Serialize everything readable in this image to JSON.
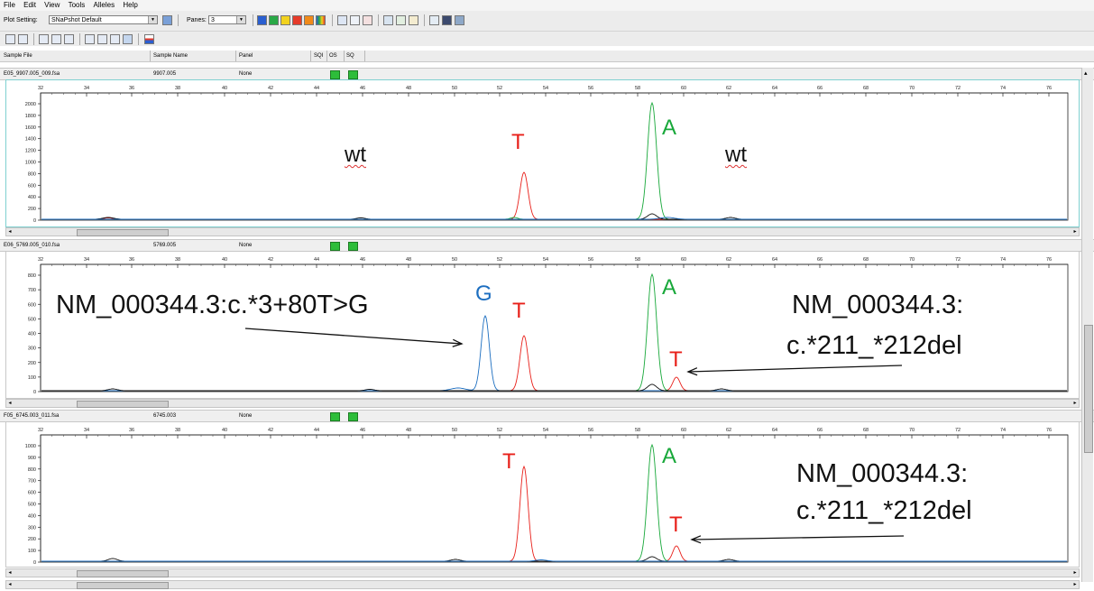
{
  "menu": [
    "File",
    "Edit",
    "View",
    "Tools",
    "Alleles",
    "Help"
  ],
  "toolbar": {
    "plot_setting_label": "Plot Setting:",
    "plot_setting_value": "SNaPshot Default",
    "panes_label": "Panes:",
    "panes_value": "3"
  },
  "columns": [
    "Sample File",
    "Sample Name",
    "Panel",
    "SQI",
    "OS",
    "SQ"
  ],
  "panels": [
    {
      "sample_file": "E05_9907.005_009.fsa",
      "sample_name": "9907.005",
      "panel": "None",
      "y_ticks": [
        "2000",
        "1800",
        "1600",
        "1400",
        "1200",
        "1000",
        "800",
        "600",
        "400",
        "200",
        "0"
      ],
      "peaks": [
        "T",
        "A"
      ],
      "annotations": [
        "wt",
        "wt"
      ]
    },
    {
      "sample_file": "E06_5769.005_010.fsa",
      "sample_name": "5769.005",
      "panel": "None",
      "y_ticks": [
        "800",
        "700",
        "600",
        "500",
        "400",
        "300",
        "200",
        "100",
        "0"
      ],
      "peaks": [
        "G",
        "T",
        "A",
        "T"
      ],
      "annotations": [
        "NM_000344.3:c.*3+80T>G",
        "NM_000344.3:",
        "c.*211_*212del"
      ]
    },
    {
      "sample_file": "F05_6745.003_011.fsa",
      "sample_name": "6745.003",
      "panel": "None",
      "y_ticks": [
        "1000",
        "900",
        "800",
        "700",
        "600",
        "500",
        "400",
        "300",
        "200",
        "100",
        "0"
      ],
      "peaks": [
        "T",
        "A",
        "T"
      ],
      "annotations": [
        "NM_000344.3:",
        "c.*211_*212del"
      ]
    }
  ],
  "x_ticks": [
    "32",
    "34",
    "36",
    "38",
    "40",
    "42",
    "44",
    "46",
    "48",
    "50",
    "52",
    "54",
    "56",
    "58",
    "60",
    "62",
    "64",
    "66",
    "68",
    "70",
    "72",
    "74",
    "76"
  ],
  "colors": {
    "red": "#e8201a",
    "green": "#18a83a",
    "blue": "#1c6ec0",
    "black": "#111111"
  }
}
